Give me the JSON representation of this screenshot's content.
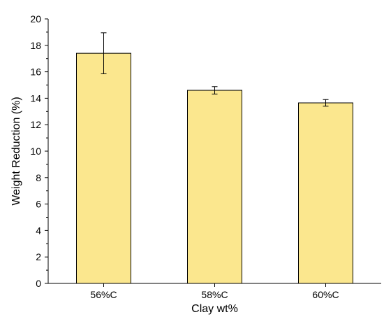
{
  "chart_data": {
    "type": "bar",
    "title": "",
    "xlabel": "Clay wt%",
    "ylabel": "Weight Reduction (%)",
    "categories": [
      "56%C",
      "58%C",
      "60%C"
    ],
    "values": [
      17.4,
      14.6,
      13.65
    ],
    "error": [
      1.55,
      0.28,
      0.25
    ],
    "ylim": [
      0,
      20
    ],
    "yticks": [
      0,
      2,
      4,
      6,
      8,
      10,
      12,
      14,
      16,
      18,
      20
    ],
    "grid": false,
    "bar_color": "#fbe78e"
  }
}
